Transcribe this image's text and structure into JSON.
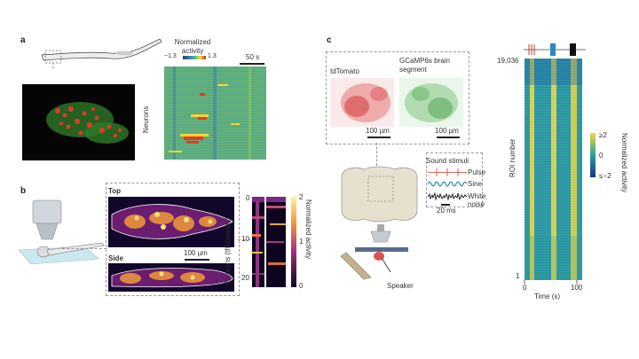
{
  "panels": {
    "a": {
      "letter": "a",
      "colorbar_title": "Normalized activity",
      "colorbar_min": "−1.3",
      "colorbar_max": "1.3",
      "time_scale": "50 s",
      "ylabel": "Neurons"
    },
    "b": {
      "letter": "b",
      "top_label": "Top",
      "side_label": "Side",
      "scale": "100 µm",
      "ylabel": "Neurons (thousands)",
      "yticks": [
        "0",
        "10",
        "20"
      ],
      "colorbar_label": "Normalized activity",
      "colorbar_ticks": [
        "2",
        "1",
        "0"
      ]
    },
    "c": {
      "letter": "c",
      "img1_label": "tdTomato",
      "img2_label": "GCaMP6s brain segment",
      "scale1": "100 µm",
      "scale2": "100 µm",
      "sound_title": "Sound stimuli",
      "stimuli": [
        "Pulse",
        "Sine",
        "White noise"
      ],
      "stim_scale": "20 ms",
      "speaker": "Speaker",
      "top_tick": "19,036",
      "bottom_tick": "1",
      "ylabel": "ROI number",
      "xlabel": "Time (s)",
      "xticks": [
        "0",
        "100"
      ],
      "colorbar_label": "Normalized activity",
      "colorbar_ticks": [
        "≥2",
        "0",
        "≤−2"
      ],
      "colors": {
        "pulse": "#c0392b",
        "sine": "#2e86c1",
        "noise": "#111111"
      }
    }
  }
}
